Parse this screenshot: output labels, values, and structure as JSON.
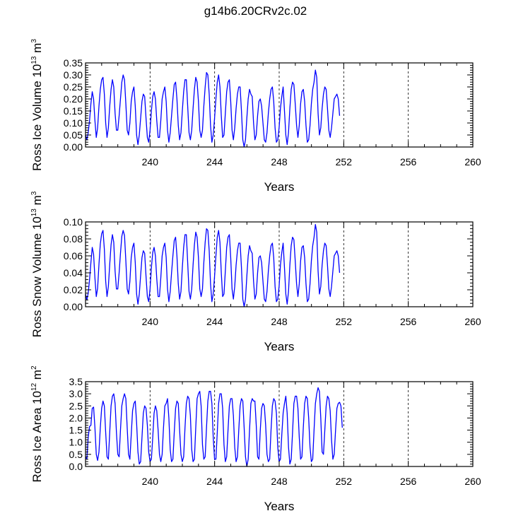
{
  "title": "g14b6.20CRv2c.02",
  "chart_data": [
    {
      "type": "line",
      "ylabel": "Ross Ice Volume 10",
      "ylabel_exp": "13",
      "ylabel_unit": "m",
      "ylabel_unit_exp": "3",
      "xlabel": "Years",
      "xlim": [
        236.0,
        260.0
      ],
      "ylim": [
        0.0,
        0.35
      ],
      "yticks": [
        0.0,
        0.05,
        0.1,
        0.15,
        0.2,
        0.25,
        0.3,
        0.35
      ],
      "ytick_labels": [
        "0.00",
        "0.05",
        "0.10",
        "0.15",
        "0.20",
        "0.25",
        "0.30",
        "0.35"
      ],
      "xticks": [
        240,
        244,
        248,
        252,
        256,
        260
      ],
      "xtick_labels": [
        "240",
        "244",
        "248",
        "252",
        "256",
        "260"
      ],
      "series_color": "#0000ff",
      "x_start": 236.0,
      "x_step": 0.0833,
      "values": [
        0.05,
        0.03,
        0.06,
        0.11,
        0.18,
        0.23,
        0.2,
        0.11,
        0.04,
        0.08,
        0.17,
        0.24,
        0.28,
        0.29,
        0.22,
        0.1,
        0.04,
        0.08,
        0.17,
        0.24,
        0.28,
        0.25,
        0.14,
        0.07,
        0.07,
        0.13,
        0.2,
        0.27,
        0.3,
        0.28,
        0.18,
        0.07,
        0.05,
        0.1,
        0.19,
        0.23,
        0.25,
        0.17,
        0.05,
        0.01,
        0.05,
        0.12,
        0.19,
        0.22,
        0.21,
        0.12,
        0.04,
        0.02,
        0.07,
        0.15,
        0.21,
        0.23,
        0.2,
        0.11,
        0.04,
        0.04,
        0.11,
        0.2,
        0.23,
        0.25,
        0.19,
        0.07,
        0.02,
        0.06,
        0.13,
        0.2,
        0.26,
        0.27,
        0.2,
        0.09,
        0.03,
        0.06,
        0.15,
        0.23,
        0.28,
        0.28,
        0.17,
        0.06,
        0.03,
        0.07,
        0.16,
        0.24,
        0.29,
        0.27,
        0.19,
        0.07,
        0.04,
        0.07,
        0.17,
        0.25,
        0.31,
        0.3,
        0.22,
        0.09,
        0.02,
        0.05,
        0.12,
        0.2,
        0.27,
        0.3,
        0.25,
        0.13,
        0.04,
        0.05,
        0.14,
        0.23,
        0.27,
        0.28,
        0.19,
        0.07,
        0.03,
        0.08,
        0.16,
        0.22,
        0.25,
        0.25,
        0.15,
        0.03,
        0.0,
        0.03,
        0.12,
        0.2,
        0.24,
        0.22,
        0.21,
        0.1,
        0.03,
        0.05,
        0.13,
        0.19,
        0.2,
        0.17,
        0.1,
        0.03,
        0.02,
        0.06,
        0.14,
        0.2,
        0.24,
        0.25,
        0.19,
        0.08,
        0.02,
        0.03,
        0.08,
        0.16,
        0.21,
        0.25,
        0.15,
        0.05,
        0.01,
        0.06,
        0.16,
        0.24,
        0.27,
        0.26,
        0.18,
        0.09,
        0.04,
        0.09,
        0.18,
        0.23,
        0.24,
        0.19,
        0.09,
        0.02,
        0.03,
        0.09,
        0.18,
        0.24,
        0.27,
        0.32,
        0.29,
        0.14,
        0.05,
        0.08,
        0.16,
        0.22,
        0.25,
        0.24,
        0.16,
        0.07,
        0.04,
        0.08,
        0.14,
        0.2,
        0.21,
        0.22,
        0.2,
        0.13
      ]
    },
    {
      "type": "line",
      "ylabel": "Ross Snow Volume 10",
      "ylabel_exp": "13",
      "ylabel_unit": "m",
      "ylabel_unit_exp": "3",
      "xlabel": "Years",
      "xlim": [
        236.0,
        260.0
      ],
      "ylim": [
        0.0,
        0.1
      ],
      "yticks": [
        0.0,
        0.02,
        0.04,
        0.06,
        0.08,
        0.1
      ],
      "ytick_labels": [
        "0.00",
        "0.02",
        "0.04",
        "0.06",
        "0.08",
        "0.10"
      ],
      "xticks": [
        240,
        244,
        248,
        252,
        256,
        260
      ],
      "xtick_labels": [
        "240",
        "244",
        "248",
        "252",
        "256",
        "260"
      ],
      "series_color": "#0000ff",
      "x_start": 236.0,
      "x_step": 0.0833,
      "values": [
        0.015,
        0.008,
        0.016,
        0.032,
        0.052,
        0.07,
        0.062,
        0.034,
        0.012,
        0.022,
        0.05,
        0.074,
        0.086,
        0.09,
        0.068,
        0.03,
        0.012,
        0.024,
        0.05,
        0.073,
        0.085,
        0.076,
        0.042,
        0.021,
        0.021,
        0.04,
        0.063,
        0.083,
        0.09,
        0.084,
        0.054,
        0.021,
        0.015,
        0.03,
        0.058,
        0.07,
        0.075,
        0.052,
        0.015,
        0.003,
        0.015,
        0.037,
        0.058,
        0.066,
        0.063,
        0.036,
        0.012,
        0.006,
        0.021,
        0.046,
        0.064,
        0.07,
        0.06,
        0.033,
        0.012,
        0.012,
        0.034,
        0.06,
        0.07,
        0.075,
        0.058,
        0.021,
        0.006,
        0.018,
        0.04,
        0.06,
        0.078,
        0.082,
        0.06,
        0.027,
        0.009,
        0.018,
        0.046,
        0.07,
        0.085,
        0.085,
        0.052,
        0.018,
        0.009,
        0.021,
        0.049,
        0.073,
        0.088,
        0.082,
        0.058,
        0.021,
        0.012,
        0.021,
        0.052,
        0.076,
        0.092,
        0.09,
        0.066,
        0.027,
        0.006,
        0.015,
        0.036,
        0.06,
        0.082,
        0.09,
        0.076,
        0.04,
        0.012,
        0.015,
        0.042,
        0.07,
        0.082,
        0.085,
        0.058,
        0.021,
        0.009,
        0.024,
        0.049,
        0.066,
        0.075,
        0.075,
        0.046,
        0.009,
        0.0,
        0.009,
        0.036,
        0.06,
        0.072,
        0.066,
        0.063,
        0.03,
        0.009,
        0.015,
        0.04,
        0.058,
        0.06,
        0.052,
        0.03,
        0.009,
        0.006,
        0.018,
        0.042,
        0.06,
        0.072,
        0.075,
        0.058,
        0.024,
        0.006,
        0.009,
        0.024,
        0.049,
        0.064,
        0.075,
        0.046,
        0.015,
        0.003,
        0.018,
        0.049,
        0.072,
        0.082,
        0.079,
        0.054,
        0.027,
        0.012,
        0.027,
        0.054,
        0.07,
        0.072,
        0.058,
        0.027,
        0.006,
        0.009,
        0.027,
        0.054,
        0.072,
        0.082,
        0.097,
        0.088,
        0.042,
        0.015,
        0.024,
        0.049,
        0.066,
        0.075,
        0.072,
        0.049,
        0.021,
        0.012,
        0.024,
        0.042,
        0.06,
        0.063,
        0.066,
        0.06,
        0.04
      ]
    },
    {
      "type": "line",
      "ylabel": "Ross Ice Area 10",
      "ylabel_exp": "12",
      "ylabel_unit": "m",
      "ylabel_unit_exp": "2",
      "xlabel": "Years",
      "xlim": [
        236.0,
        260.0
      ],
      "ylim": [
        0.0,
        3.5
      ],
      "yticks": [
        0.0,
        0.5,
        1.0,
        1.5,
        2.0,
        2.5,
        3.0,
        3.5
      ],
      "ytick_labels": [
        "0.0",
        "0.5",
        "1.0",
        "1.5",
        "2.0",
        "2.5",
        "3.0",
        "3.5"
      ],
      "xticks": [
        240,
        244,
        248,
        252,
        256,
        260
      ],
      "xtick_labels": [
        "240",
        "244",
        "248",
        "252",
        "256",
        "260"
      ],
      "series_color": "#0000ff",
      "x_start": 236.0,
      "x_step": 0.0833,
      "values": [
        0.4,
        0.3,
        1.2,
        1.65,
        1.7,
        2.4,
        2.45,
        1.6,
        0.5,
        0.25,
        0.6,
        1.6,
        2.4,
        2.7,
        2.5,
        1.4,
        0.4,
        0.3,
        1.4,
        2.5,
        2.9,
        3.0,
        2.6,
        1.4,
        0.5,
        0.4,
        1.5,
        2.5,
        2.8,
        3.0,
        2.8,
        1.6,
        0.5,
        0.3,
        1.3,
        2.3,
        2.6,
        2.7,
        1.8,
        0.6,
        0.1,
        0.2,
        1.2,
        2.2,
        2.5,
        2.4,
        1.7,
        0.6,
        0.2,
        0.3,
        1.2,
        2.2,
        2.5,
        2.3,
        1.5,
        0.5,
        0.2,
        0.5,
        1.6,
        2.5,
        2.6,
        2.8,
        2.0,
        0.7,
        0.2,
        0.3,
        1.4,
        2.4,
        2.7,
        2.6,
        1.5,
        0.5,
        0.2,
        0.4,
        1.6,
        2.6,
        2.9,
        2.8,
        2.1,
        0.7,
        0.2,
        0.3,
        1.6,
        2.8,
        3.0,
        3.1,
        2.5,
        0.9,
        0.3,
        0.4,
        1.6,
        2.7,
        3.1,
        3.1,
        2.6,
        1.2,
        0.3,
        0.3,
        1.4,
        2.6,
        3.0,
        3.0,
        2.4,
        0.9,
        0.2,
        0.4,
        1.5,
        2.5,
        2.8,
        2.8,
        2.1,
        0.8,
        0.2,
        0.4,
        1.5,
        2.5,
        2.8,
        2.7,
        1.6,
        0.4,
        0.0,
        0.3,
        1.5,
        2.6,
        2.8,
        2.7,
        2.7,
        1.7,
        0.4,
        0.3,
        1.5,
        2.4,
        2.6,
        2.5,
        1.7,
        0.5,
        0.2,
        0.3,
        1.5,
        2.5,
        2.8,
        2.7,
        2.2,
        0.8,
        0.2,
        0.3,
        1.3,
        2.2,
        2.6,
        2.9,
        2.2,
        0.8,
        0.1,
        0.3,
        1.4,
        2.6,
        2.9,
        2.9,
        2.4,
        1.2,
        0.3,
        0.4,
        1.6,
        2.6,
        2.9,
        2.8,
        2.0,
        0.8,
        0.2,
        0.3,
        1.5,
        2.6,
        3.0,
        3.25,
        3.1,
        2.0,
        0.6,
        0.5,
        1.5,
        2.5,
        2.9,
        2.8,
        2.3,
        1.1,
        0.3,
        0.5,
        1.5,
        2.4,
        2.6,
        2.65,
        2.5,
        1.6
      ]
    }
  ]
}
